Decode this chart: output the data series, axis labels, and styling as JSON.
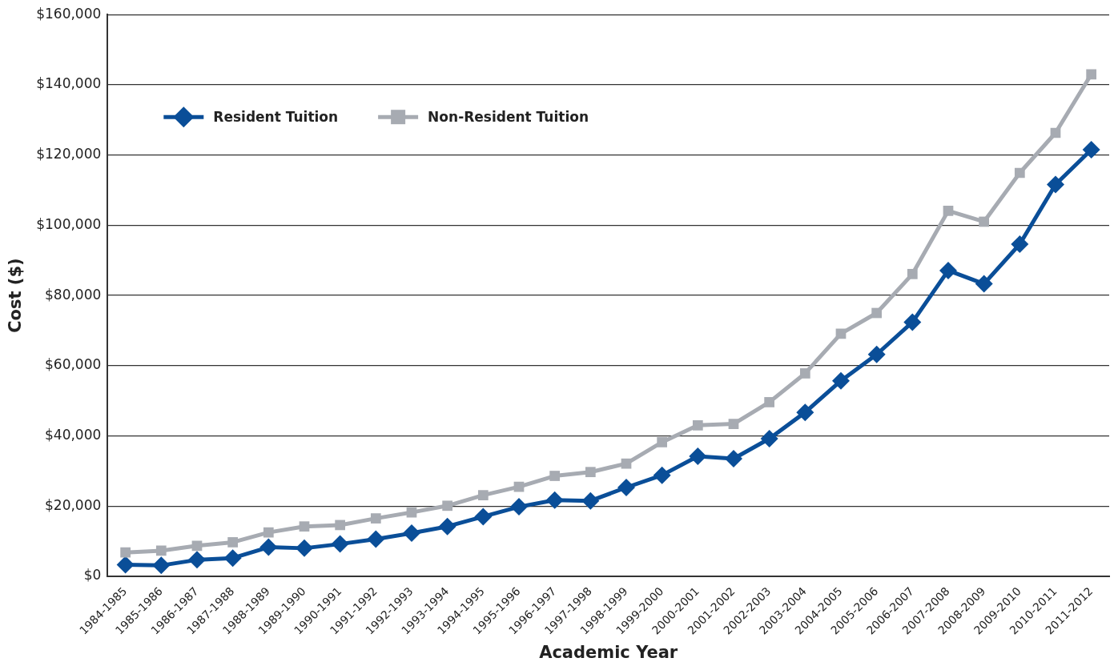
{
  "chart_data": {
    "type": "line",
    "xlabel": "Academic Year",
    "ylabel": "Cost ($)",
    "categories": [
      "1984-1985",
      "1985-1986",
      "1986-1987",
      "1987-1988",
      "1988-1989",
      "1989-1990",
      "1990-1991",
      "1991-1992",
      "1992-1993",
      "1993-1994",
      "1994-1995",
      "1995-1996",
      "1996-1997",
      "1997-1998",
      "1998-1999",
      "1999-2000",
      "2000-2001",
      "2001-2002",
      "2002-2003",
      "2003-2004",
      "2004-2005",
      "2005-2006",
      "2006-2007",
      "2007-2008",
      "2008-2009",
      "2009-2010",
      "2010-2011",
      "2011-2012"
    ],
    "series": [
      {
        "name": "Resident Tuition",
        "color": "#0a4e98",
        "marker": "diamond",
        "values": [
          3300,
          3100,
          4700,
          5200,
          8300,
          8000,
          9200,
          10600,
          12300,
          14200,
          17000,
          19800,
          21700,
          21500,
          25300,
          28800,
          34200,
          33500,
          39200,
          46700,
          55700,
          63200,
          72400,
          87100,
          83300,
          94600,
          111600,
          121500
        ]
      },
      {
        "name": "Non-Resident Tuition",
        "color": "#a7abb2",
        "marker": "square",
        "values": [
          6800,
          7300,
          8700,
          9700,
          12500,
          14200,
          14600,
          16500,
          18200,
          20100,
          23100,
          25500,
          28600,
          29700,
          32100,
          38200,
          43000,
          43400,
          49600,
          57800,
          69100,
          75000,
          86100,
          104100,
          101000,
          114900,
          126300,
          143000
        ]
      }
    ],
    "ylim": [
      0,
      160000
    ],
    "yticks": [
      {
        "value": 0,
        "label": "$0"
      },
      {
        "value": 20000,
        "label": "$20,000"
      },
      {
        "value": 40000,
        "label": "$40,000"
      },
      {
        "value": 60000,
        "label": "$60,000"
      },
      {
        "value": 80000,
        "label": "$80,000"
      },
      {
        "value": 100000,
        "label": "$100,000"
      },
      {
        "value": 120000,
        "label": "$120,000"
      },
      {
        "value": 140000,
        "label": "$140,000"
      },
      {
        "value": 160000,
        "label": "$160,000"
      }
    ],
    "grid": "y",
    "legend": "top left",
    "line_style": "solid"
  }
}
